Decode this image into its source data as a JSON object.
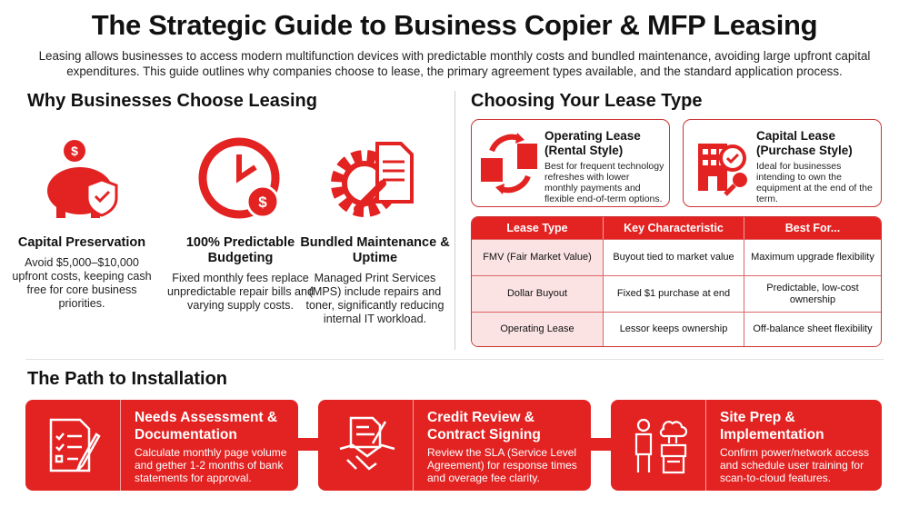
{
  "title": "The Strategic Guide to Business Copier & MFP Leasing",
  "intro": "Leasing allows businesses to access modern multifunction devices with predictable monthly costs and bundled maintenance, avoiding large upfront capital expenditures. This guide outlines why companies choose to lease, the primary agreement types available, and the standard application process.",
  "colors": {
    "accent": "#e32222",
    "row_tint": "#fbe3e3"
  },
  "why": {
    "heading": "Why Businesses Choose Leasing",
    "items": [
      {
        "icon": "piggy-bank-shield-icon",
        "title": "Capital Preservation",
        "text": "Avoid $5,000–$10,000 upfront costs, keeping cash free for core business priorities."
      },
      {
        "icon": "clock-dollar-icon",
        "title": "100% Predictable Budgeting",
        "text": "Fixed monthly fees replace unpredictable repair bills and varying supply costs."
      },
      {
        "icon": "gear-wrench-document-icon",
        "title": "Bundled Maintenance & Uptime",
        "text": "Managed Print Services (MPS) include repairs and toner, significantly reducing internal IT workload."
      }
    ]
  },
  "lease": {
    "heading": "Choosing Your Lease Type",
    "cards": [
      {
        "icon": "copier-cycle-icon",
        "title": "Operating Lease (Rental Style)",
        "text": "Best for frequent technology refreshes with lower monthly payments and flexible end-of-term options."
      },
      {
        "icon": "building-key-icon",
        "title": "Capital Lease (Purchase Style)",
        "text": "Ideal for businesses intending to own the equipment at the end of the term."
      }
    ],
    "table": {
      "headers": [
        "Lease Type",
        "Key Characteristic",
        "Best For..."
      ],
      "rows": [
        [
          "FMV (Fair Market Value)",
          "Buyout tied to market value",
          "Maximum upgrade flexibility"
        ],
        [
          "Dollar Buyout",
          "Fixed $1 purchase at end",
          "Predictable, low-cost ownership"
        ],
        [
          "Operating Lease",
          "Lessor keeps ownership",
          "Off-balance sheet flexibility"
        ]
      ]
    }
  },
  "path": {
    "heading": "The Path to Installation",
    "steps": [
      {
        "icon": "checklist-pencil-icon",
        "title": "Needs Assessment & Documentation",
        "text": "Calculate monthly page volume and gether 1-2 months of bank statements for approval."
      },
      {
        "icon": "contract-handshake-icon",
        "title": "Credit Review & Contract Signing",
        "text": "Review the SLA (Service Level Agreement) for response times and overage fee clarity."
      },
      {
        "icon": "technician-copier-cloud-icon",
        "title": "Site Prep & Implementation",
        "text": "Confirm power/network access and schedule user training for scan-to-cloud features."
      }
    ]
  }
}
